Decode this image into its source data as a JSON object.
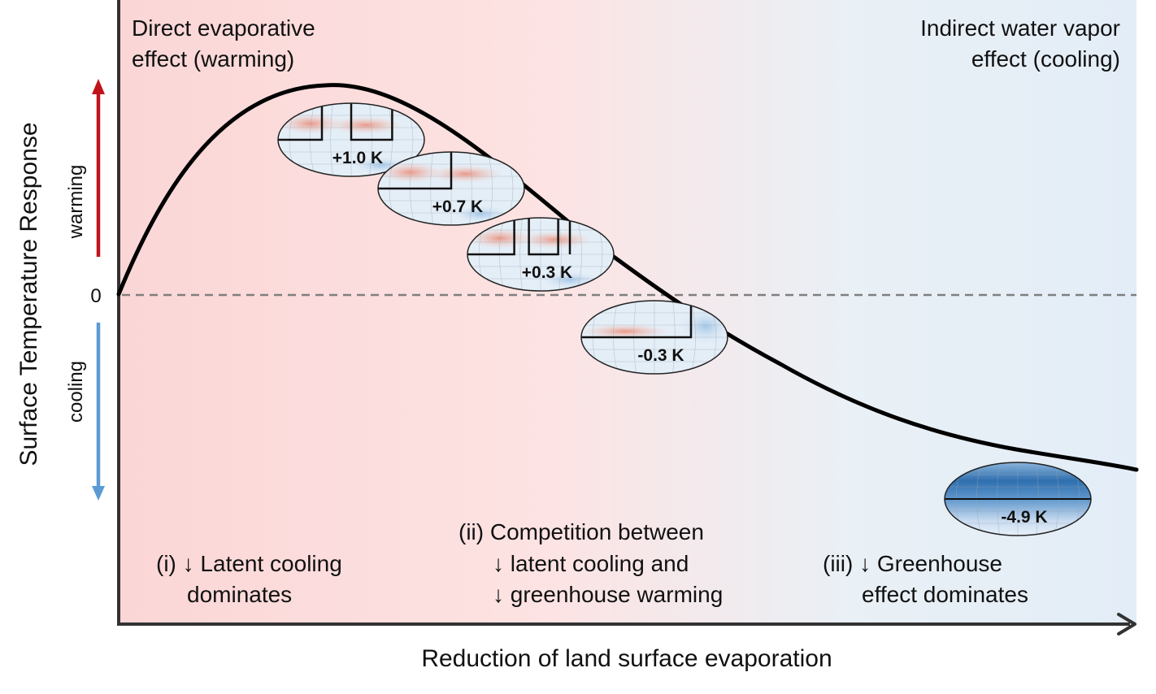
{
  "y_axis": {
    "title": "Surface Temperature Response",
    "zero_label": "0",
    "warming_label": "warming",
    "cooling_label": "cooling"
  },
  "x_axis": {
    "title": "Reduction of land surface evaporation"
  },
  "corners": {
    "left": [
      "Direct evaporative",
      "effect (warming)"
    ],
    "right": [
      "Indirect water vapor",
      "effect (cooling)"
    ]
  },
  "regimes": {
    "i": [
      "(i) ↓ Latent cooling",
      "dominates"
    ],
    "ii": [
      "(ii) Competition between",
      "↓ latent cooling and",
      "↓ greenhouse warming"
    ],
    "iii": [
      "(iii) ↓ Greenhouse",
      "effect dominates"
    ]
  },
  "maps": [
    {
      "label": "+1.0 K",
      "value": 1.0,
      "tone": "warm"
    },
    {
      "label": "+0.7 K",
      "value": 0.7,
      "tone": "warm"
    },
    {
      "label": "+0.3 K",
      "value": 0.3,
      "tone": "warm"
    },
    {
      "label": "-0.3 K",
      "value": -0.3,
      "tone": "mixed"
    },
    {
      "label": "-4.9 K",
      "value": -4.9,
      "tone": "cool"
    }
  ],
  "colors": {
    "warm_bg": "#fce2e2",
    "cool_bg": "#e6f0f8",
    "warming_arrow": "#c0141b",
    "cooling_arrow": "#5b9bd5",
    "curve": "#000000",
    "zero_line": "#808080"
  }
}
